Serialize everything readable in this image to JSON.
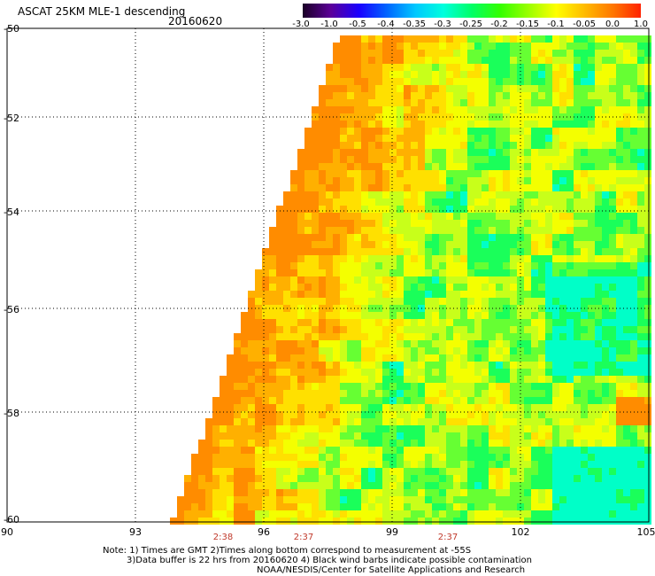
{
  "header": {
    "title": "ASCAT 25KM MLE-1 descending",
    "date": "20160620"
  },
  "colorbar": {
    "labels": [
      "-3.0",
      "-1.0",
      "-0.5",
      "-0.4",
      "-0.35",
      "-0.3",
      "-0.25",
      "-0.2",
      "-0.15",
      "-0.1",
      "-0.05",
      "0.0",
      "1.0"
    ],
    "colors": [
      "#1a0026",
      "#5c0099",
      "#1a00ff",
      "#0066ff",
      "#00c8ff",
      "#00ffdd",
      "#00ff66",
      "#33ff00",
      "#99ff00",
      "#ffff00",
      "#ffbb00",
      "#ff7700",
      "#ff2200"
    ]
  },
  "axes": {
    "lat_labels": [
      "-50",
      "-52",
      "-54",
      "-56",
      "-58",
      "-60"
    ],
    "lon_labels": [
      "90",
      "93",
      "96",
      "99",
      "102",
      "105"
    ],
    "pass_times": [
      "2:38",
      "2:37",
      "2:37"
    ]
  },
  "notes": {
    "line1": "Note: 1) Times are GMT 2)Times along bottom correspond to measurement at -55S",
    "line2": "3)Data buffer is 22 hrs from 20160620 4) Black wind barbs indicate possible contamination",
    "line3": "NOAA/NESDIS/Center for Satellite Applications and Research"
  }
}
